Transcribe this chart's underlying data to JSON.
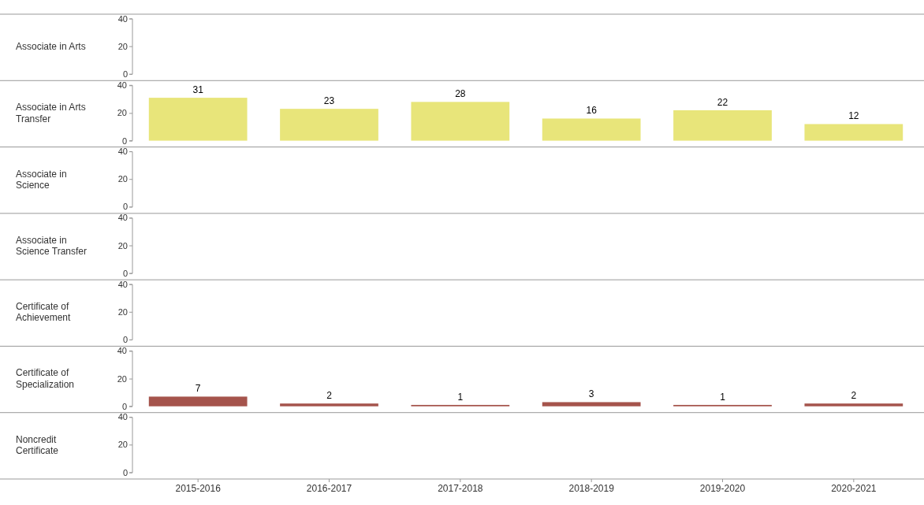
{
  "chart_data": [
    {
      "type": "other",
      "ylabel": "Associate in Arts",
      "annotations": [
        "40",
        "20",
        "0"
      ]
    },
    {
      "type": "bar",
      "ylabel": "Associate in Arts Transfer",
      "categories": [
        null,
        null,
        null,
        null,
        null,
        null
      ],
      "values": [
        31,
        23,
        28,
        16,
        22,
        12
      ],
      "color": "#e8e57a",
      "ylim": [
        0,
        40
      ],
      "yticks": [
        0,
        20,
        40
      ],
      "data_labels": true,
      "tick_labels": "y"
    },
    {
      "type": "other",
      "ylabel": "Associate in Science",
      "annotations": [
        "40",
        "20",
        "0"
      ]
    },
    {
      "type": "other",
      "ylabel": "Associate in Science Transfer",
      "annotations": [
        "40",
        "20",
        "0"
      ]
    },
    {
      "type": "other",
      "ylabel": "Certificate of Achievement",
      "annotations": [
        "40",
        "20",
        "0"
      ]
    },
    {
      "type": "bar",
      "ylabel": "Certificate of Specialization",
      "categories": [
        null,
        null,
        null,
        null,
        null,
        null
      ],
      "values": [
        7,
        2,
        1,
        3,
        1,
        2
      ],
      "color": "#a5544c",
      "ylim": [
        0,
        40
      ],
      "yticks": [
        0,
        20,
        40
      ],
      "data_labels": true,
      "tick_labels": "y"
    },
    {
      "type": "other",
      "ylabel": "Noncredit Certificate",
      "categories": [
        "2015-2016",
        "2016-2017",
        "2017-2018",
        "2018-2019",
        "2019-2020",
        "2020-2021"
      ],
      "annotations": [
        "40",
        "20",
        "0"
      ]
    }
  ]
}
